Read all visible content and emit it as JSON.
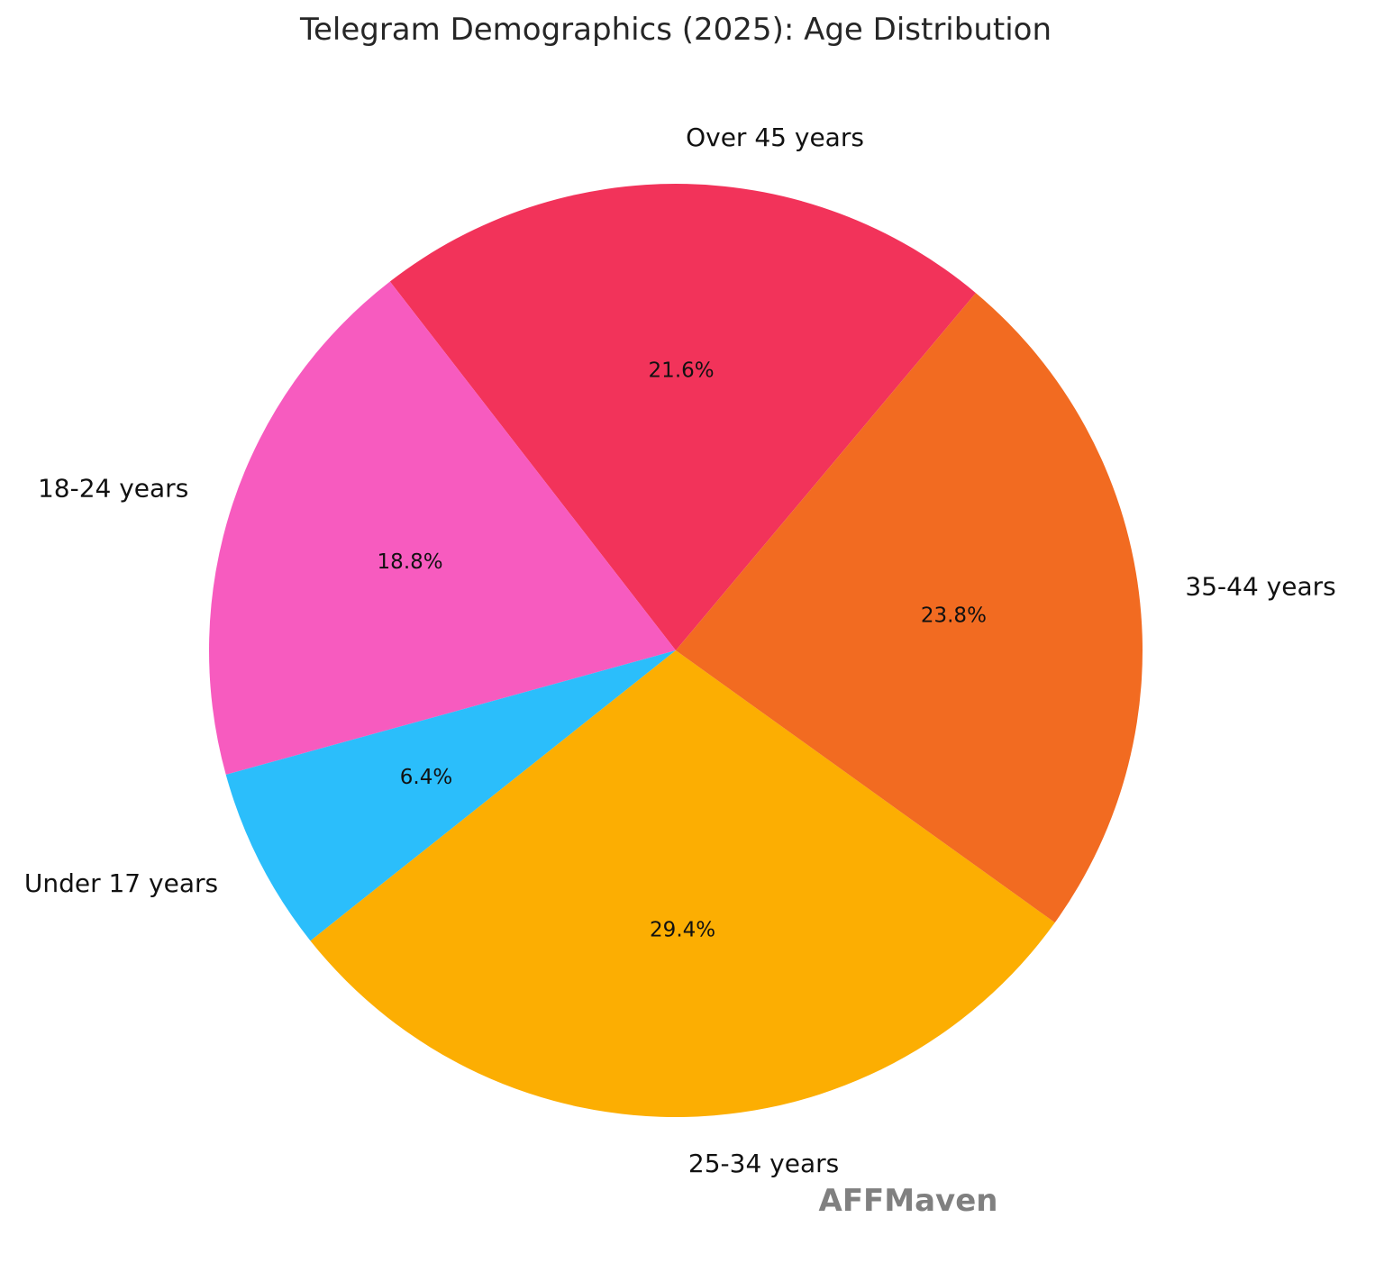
{
  "chart_data": {
    "type": "pie",
    "title": "Telegram Demographics (2025): Age Distribution",
    "categories": [
      "Over 45 years",
      "18-24 years",
      "Under 17 years",
      "25-34 years",
      "35-44 years"
    ],
    "values": [
      21.6,
      18.8,
      6.4,
      29.4,
      23.8
    ],
    "value_labels": [
      "21.6%",
      "18.8%",
      "6.4%",
      "29.4%",
      "23.8%"
    ],
    "colors": [
      "#f2335a",
      "#f75bbf",
      "#2bbefb",
      "#fcae02",
      "#f26b21"
    ],
    "direction": "counterclockwise",
    "legend": "none"
  },
  "watermark": {
    "text": "AFFMaven",
    "color": "#808080"
  }
}
